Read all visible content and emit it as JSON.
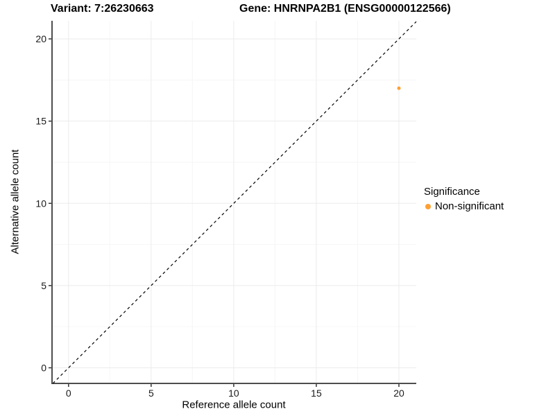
{
  "titles": {
    "variant": "Variant: 7:26230663",
    "gene": "Gene: HNRNPA2B1 (ENSG00000122566)"
  },
  "chart_data": {
    "type": "scatter",
    "title_left": "Variant: 7:26230663",
    "title_right": "Gene: HNRNPA2B1 (ENSG00000122566)",
    "xlabel": "Reference allele count",
    "ylabel": "Alternative allele count",
    "xlim": [
      -1,
      21.05
    ],
    "ylim": [
      -0.95,
      21.1
    ],
    "x_ticks": [
      0,
      5,
      10,
      15,
      20
    ],
    "y_ticks": [
      0,
      5,
      10,
      15,
      20
    ],
    "grid": "major+minor",
    "reference_line": {
      "type": "identity-diagonal",
      "style": "dashed",
      "color": "#000000"
    },
    "series": [
      {
        "name": "Non-significant",
        "color": "#FFA033",
        "points": [
          {
            "x": 20,
            "y": 17
          }
        ],
        "point_radius": 2.5
      }
    ],
    "legend": {
      "position": "right",
      "title": "Significance",
      "items": [
        {
          "label": "Non-significant",
          "color": "#FFA033"
        }
      ]
    },
    "style": {
      "background": "#FFFFFF",
      "grid_major": "#EBEBEB",
      "grid_minor": "#F6F6F6",
      "axis_line": "#4D4D4D",
      "tick_mark": "#333333",
      "tick_text": "#1A1A1A"
    }
  }
}
